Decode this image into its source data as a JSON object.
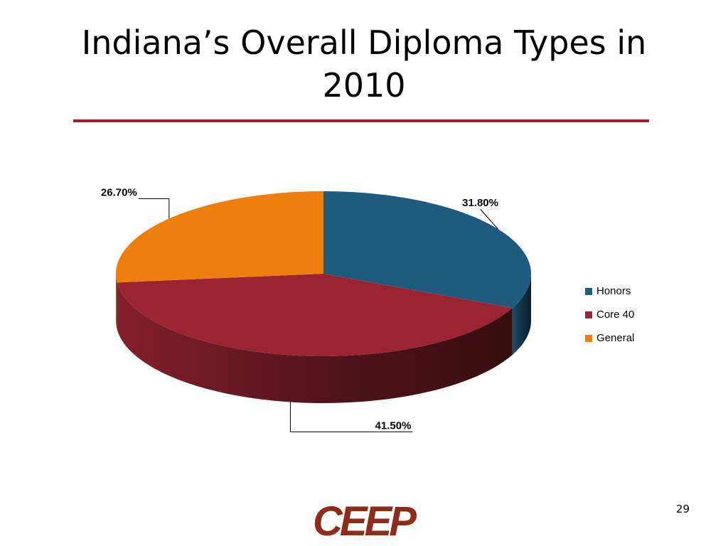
{
  "chart_data": {
    "type": "pie",
    "title": "Indiana’s Overall Diploma Types in 2010",
    "categories": [
      "Honors",
      "Core 40",
      "General"
    ],
    "values": [
      31.8,
      41.5,
      26.7
    ],
    "value_labels": [
      "31.80%",
      "41.50%",
      "26.70%"
    ],
    "colors": [
      "#1f5a7f",
      "#9b2432",
      "#ec7f0e"
    ],
    "legend": "right"
  },
  "page_number": "29",
  "logo": "CEEP"
}
